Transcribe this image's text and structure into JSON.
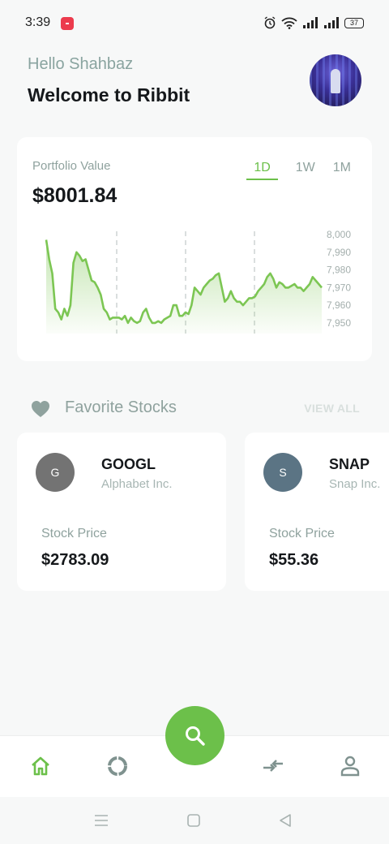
{
  "status_bar": {
    "time": "3:39",
    "battery": "37",
    "icons": [
      "notification-icon",
      "alarm-icon",
      "wifi-icon",
      "signal-icon",
      "signal-icon",
      "battery-icon"
    ]
  },
  "header": {
    "greeting": "Hello Shahbaz",
    "welcome": "Welcome to Ribbit",
    "avatar_icon": "avatar-image"
  },
  "portfolio": {
    "label": "Portfolio Value",
    "value": "$8001.84",
    "ranges": [
      {
        "label": "1D",
        "active": true
      },
      {
        "label": "1W",
        "active": false
      },
      {
        "label": "1M",
        "active": false
      }
    ]
  },
  "chart_data": {
    "type": "area",
    "ylim": [
      7944,
      8000
    ],
    "y_ticks": [
      "8,000",
      "7,990",
      "7,980",
      "7,970",
      "7,960",
      "7,950"
    ],
    "y_tick_values": [
      8000,
      7990,
      7980,
      7970,
      7960,
      7950
    ],
    "vertical_guides": [
      0.25,
      0.5,
      0.75
    ],
    "line_color": "#7cc653",
    "fill_color": "#7cc653",
    "values": [
      7997,
      7986,
      7978,
      7958,
      7956,
      7952,
      7958,
      7954,
      7960,
      7984,
      7990,
      7988,
      7985,
      7986,
      7980,
      7974,
      7973,
      7970,
      7966,
      7958,
      7956,
      7952,
      7953,
      7953,
      7953,
      7952,
      7954,
      7950,
      7953,
      7951,
      7950,
      7951,
      7956,
      7958,
      7953,
      7950,
      7950,
      7951,
      7950,
      7952,
      7953,
      7954,
      7960,
      7960,
      7954,
      7954,
      7956,
      7955,
      7960,
      7970,
      7968,
      7966,
      7970,
      7972,
      7974,
      7975,
      7977,
      7978,
      7970,
      7962,
      7964,
      7968,
      7964,
      7962,
      7962,
      7960,
      7962,
      7964,
      7964,
      7965,
      7968,
      7970,
      7972,
      7976,
      7978,
      7975,
      7970,
      7973,
      7972,
      7970,
      7970,
      7971,
      7972,
      7970,
      7970,
      7968,
      7970,
      7972,
      7976,
      7974,
      7972,
      7970
    ]
  },
  "favorites": {
    "title": "Favorite Stocks",
    "view_all": "VIEW ALL",
    "stocks": [
      {
        "initial": "G",
        "ticker": "GOOGL",
        "name": "Alphabet Inc.",
        "price_label": "Stock Price",
        "price": "$2783.09",
        "color": "#737373"
      },
      {
        "initial": "S",
        "ticker": "SNAP",
        "name": "Snap Inc.",
        "price_label": "Stock Price",
        "price": "$55.36",
        "color": "#5b7484"
      }
    ]
  },
  "bottom_nav": {
    "items": [
      "home-icon",
      "portfolio-ring-icon",
      "search-icon",
      "trade-arrows-icon",
      "profile-icon"
    ],
    "accent": "#6cc04a",
    "inactive": "#7f928f"
  },
  "system_nav": [
    "menu-icon",
    "home-square-icon",
    "back-triangle-icon"
  ]
}
